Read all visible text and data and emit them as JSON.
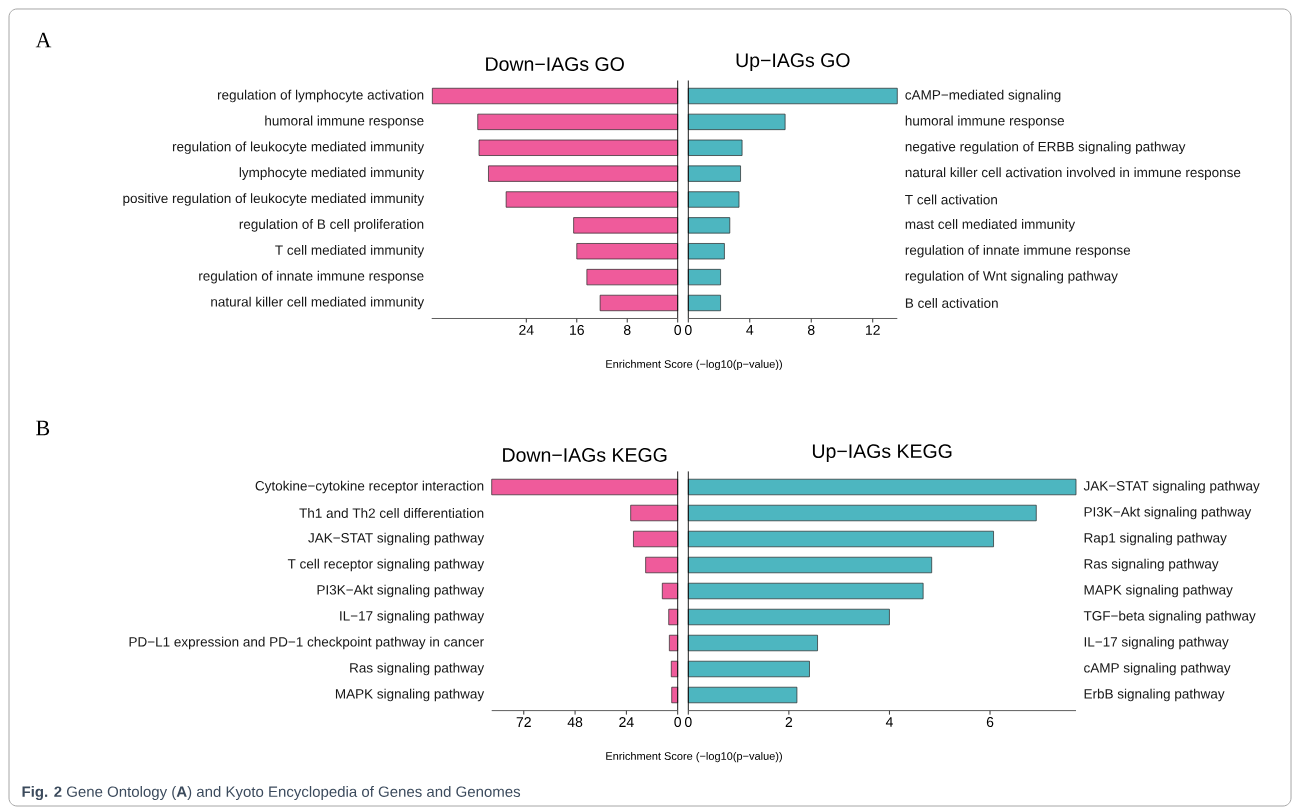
{
  "chart_data": [
    {
      "type": "bar",
      "orientation": "horizontal",
      "title": "Down−IAGs GO",
      "categories": [
        "regulation of lymphocyte activation",
        "humoral immune response",
        "regulation of leukocyte mediated immunity",
        "lymphocyte mediated immunity",
        "positive regulation of leukocyte mediated immunity",
        "regulation of B cell proliferation",
        "T cell mediated immunity",
        "regulation of innate immune response",
        "natural killer cell mediated immunity"
      ],
      "values": [
        38.9,
        31.7,
        31.5,
        30.0,
        27.2,
        16.5,
        16.0,
        14.4,
        12.3
      ],
      "color": "#ef5b9b",
      "xlim": [
        39,
        0
      ],
      "xticks": [
        24,
        16,
        8,
        0
      ],
      "annotations": [
        "A"
      ]
    },
    {
      "type": "bar",
      "orientation": "horizontal",
      "title": "Up−IAGs GO",
      "xlabel": "Enrichment Score (−log10(p−value))",
      "categories": [
        "cAMP−mediated signaling",
        "humoral immune response",
        "negative regulation of ERBB signaling pathway",
        "natural killer cell activation involved in immune response",
        "T cell activation",
        "mast cell mediated immunity",
        "regulation of innate immune response",
        "regulation of Wnt signaling pathway",
        "B cell activation"
      ],
      "values": [
        13.6,
        6.3,
        3.5,
        3.4,
        3.3,
        2.7,
        2.35,
        2.1,
        2.1
      ],
      "color": "#4db6c0",
      "xlim": [
        0,
        13.6
      ],
      "xticks": [
        0,
        4,
        8,
        12
      ]
    },
    {
      "type": "bar",
      "orientation": "horizontal",
      "title": "Down−IAGs KEGG",
      "categories": [
        "Cytokine−cytokine receptor interaction",
        "Th1 and Th2 cell differentiation",
        "JAK−STAT signaling pathway",
        "T cell receptor signaling pathway",
        "PI3K−Akt signaling pathway",
        "IL−17 signaling pathway",
        "PD−L1 expression and PD−1 checkpoint pathway in cancer",
        "Ras signaling pathway",
        "MAPK signaling pathway"
      ],
      "values": [
        87,
        22,
        20.7,
        15,
        7.2,
        4.2,
        3.9,
        3.0,
        2.8
      ],
      "color": "#ef5b9b",
      "xlim": [
        87,
        0
      ],
      "xticks": [
        72,
        48,
        24,
        0
      ],
      "annotations": [
        "B"
      ]
    },
    {
      "type": "bar",
      "orientation": "horizontal",
      "title": "Up−IAGs KEGG",
      "xlabel": "Enrichment Score (−log10(p−value))",
      "categories": [
        "JAK−STAT signaling pathway",
        "PI3K−Akt signaling pathway",
        "Rap1 signaling pathway",
        "Ras signaling pathway",
        "MAPK signaling pathway",
        "TGF−beta signaling pathway",
        "IL−17 signaling pathway",
        "cAMP signaling pathway",
        "ErbB signaling pathway"
      ],
      "values": [
        7.71,
        6.92,
        6.07,
        4.84,
        4.67,
        4.0,
        2.57,
        2.41,
        2.16
      ],
      "color": "#4db6c0",
      "xlim": [
        0,
        7.71
      ],
      "xticks": [
        0,
        2,
        4,
        6
      ],
      "annotations": [
        "**Fig. 2** Gene Ontology (**A**) and Kyoto Encyclopedia of Genes and Genomes"
      ]
    }
  ]
}
